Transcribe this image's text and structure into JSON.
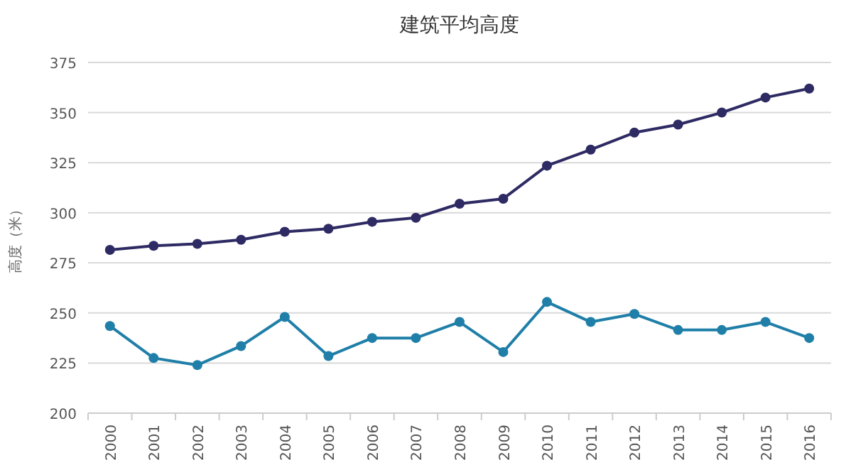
{
  "chart_data": {
    "type": "line",
    "title": "建筑平均高度",
    "ylabel": "高度（米）",
    "categories": [
      "2000",
      "2001",
      "2002",
      "2003",
      "2004",
      "2005",
      "2006",
      "2007",
      "2008",
      "2009",
      "2010",
      "2011",
      "2012",
      "2013",
      "2014",
      "2015",
      "2016"
    ],
    "series": [
      {
        "color": "#2e2a63",
        "values": [
          281.5,
          283.5,
          284.5,
          286.5,
          290.5,
          292,
          295.5,
          297.5,
          304.5,
          307,
          323.5,
          331.5,
          340,
          344,
          350,
          357.5,
          362
        ]
      },
      {
        "color": "#1f7fa8",
        "values": [
          243.5,
          227.5,
          224,
          233.5,
          248,
          228.5,
          237.5,
          237.5,
          245.5,
          230.5,
          255.5,
          245.5,
          249.5,
          241.5,
          241.5,
          245.5,
          237.5
        ]
      }
    ],
    "ylim": [
      200,
      375
    ],
    "yticks": [
      200,
      225,
      250,
      275,
      300,
      325,
      350,
      375
    ],
    "grid": "y",
    "marker": "circle",
    "line_style": "solid"
  }
}
